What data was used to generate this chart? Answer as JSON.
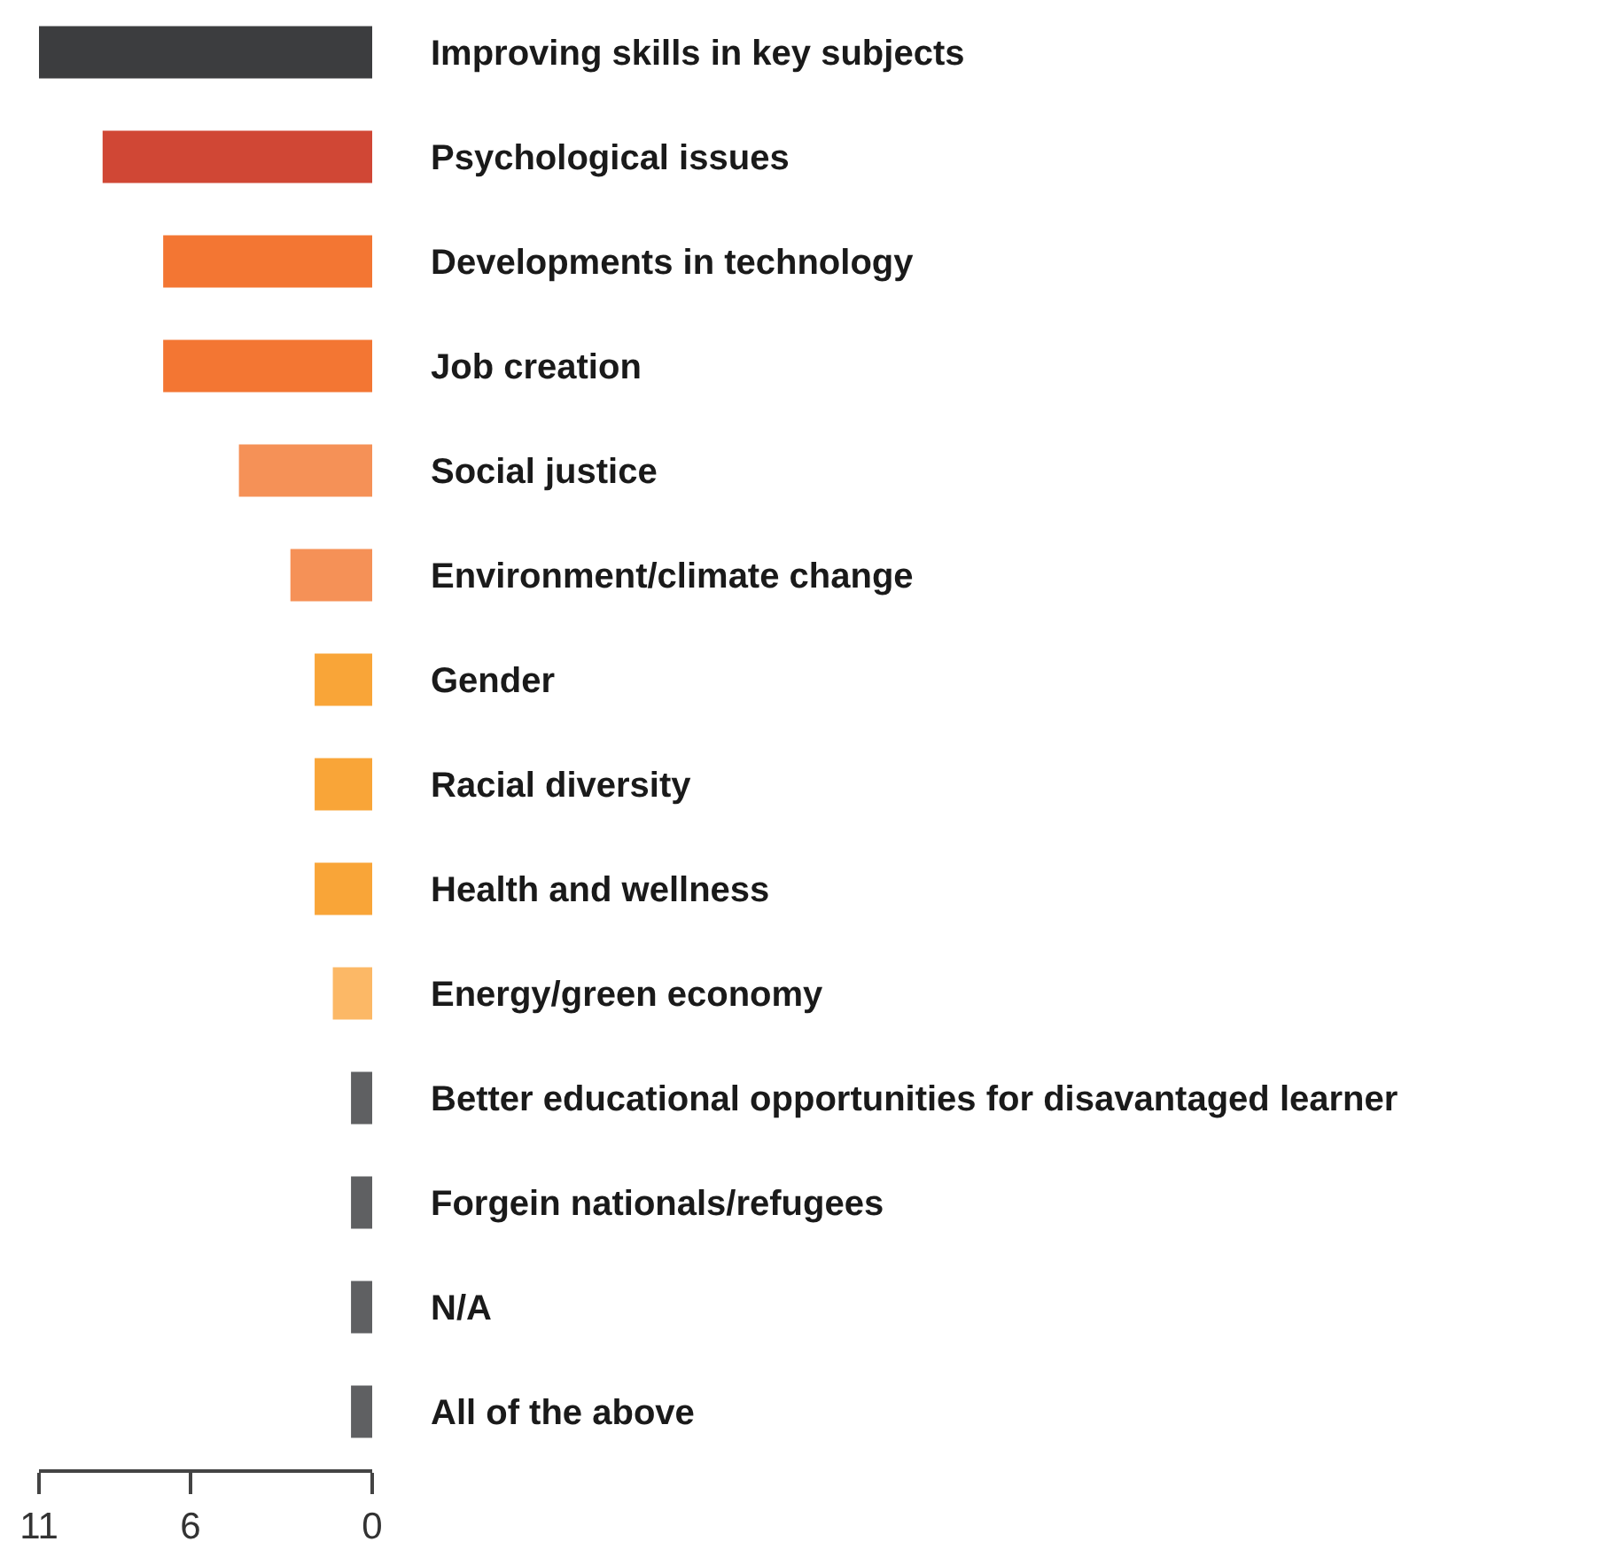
{
  "chart_data": {
    "type": "bar",
    "orientation": "horizontal",
    "categories": [
      "Improving skills in key subjects",
      "Psychological issues",
      "Developments in technology",
      "Job creation",
      "Social justice",
      "Environment/climate change",
      "Gender",
      "Racial diversity",
      "Health and wellness",
      "Energy/green economy",
      "Better educational opportunities for disavantaged learner",
      "Forgein nationals/refugees",
      "N/A",
      "All of the above"
    ],
    "values": [
      11,
      8.9,
      6.9,
      6.9,
      4.4,
      2.7,
      1.9,
      1.9,
      1.9,
      1.3,
      0.7,
      0.7,
      0.7,
      0.7
    ],
    "colors": [
      "#3c3d3f",
      "#d04735",
      "#f37633",
      "#f37633",
      "#f59157",
      "#f59157",
      "#f9a538",
      "#f9a538",
      "#f9a538",
      "#fcb866",
      "#5f6062",
      "#5f6062",
      "#5f6062",
      "#5f6062"
    ],
    "xlim": [
      11,
      0
    ],
    "xticks": [
      11,
      6,
      0
    ],
    "grid": false
  }
}
